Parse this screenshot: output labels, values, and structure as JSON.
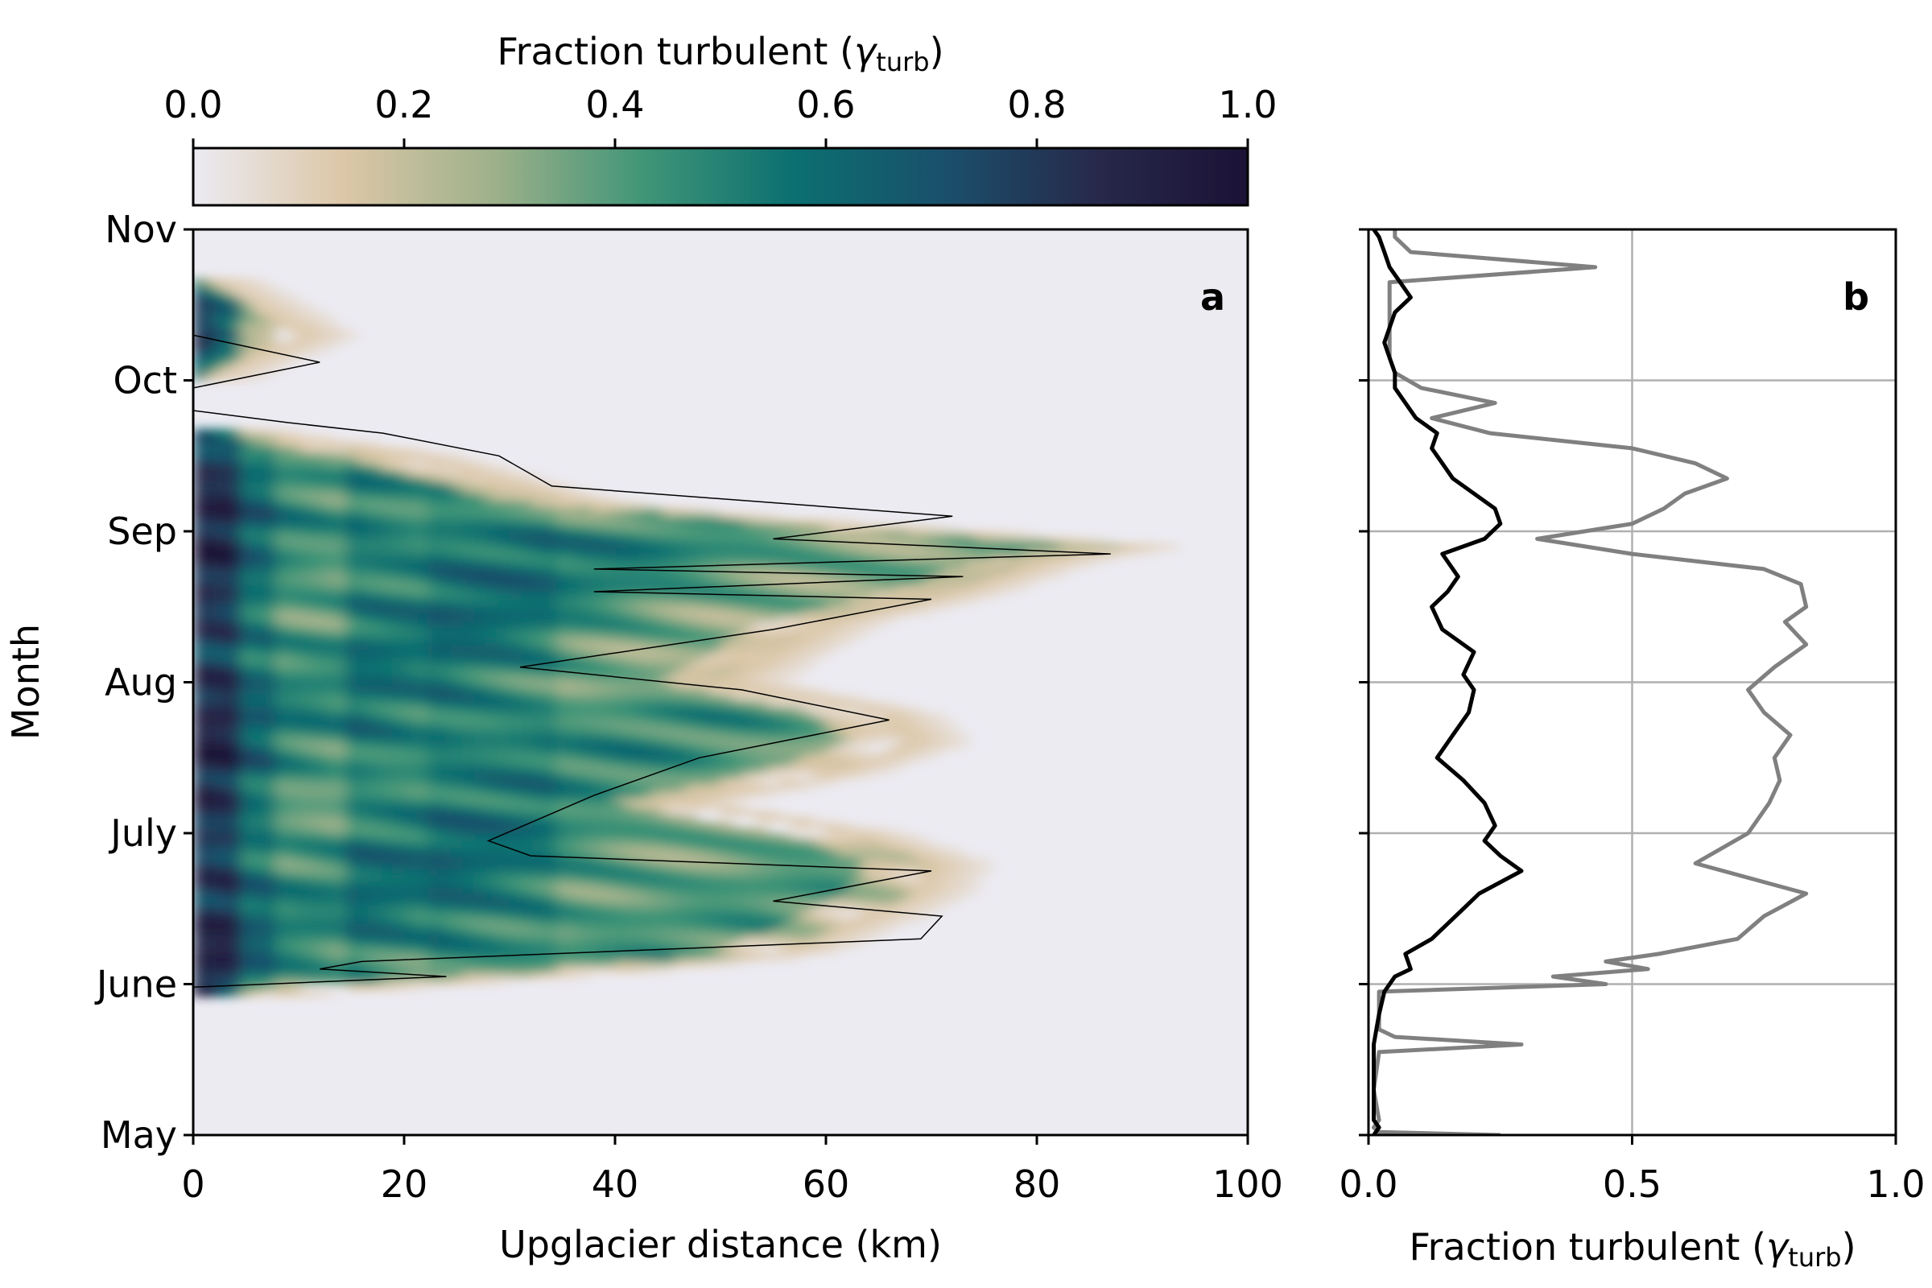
{
  "colorbar": {
    "label_main": "Fraction turbulent (",
    "label_symbol": "γ",
    "label_sub": "turb",
    "label_close": ")",
    "ticks": [
      "0.0",
      "0.2",
      "0.4",
      "0.6",
      "0.8",
      "1.0"
    ],
    "stops": [
      "#ecebf2",
      "#dcc7a7",
      "#9db08a",
      "#3f9577",
      "#0b6f70",
      "#1a4f6b",
      "#27294a",
      "#1b1236"
    ]
  },
  "chart_data": [
    {
      "panel": "a",
      "type": "heatmap",
      "xlabel": "Upglacier distance (km)",
      "ylabel": "Month",
      "xlim": [
        0,
        100
      ],
      "x_ticks": [
        "0",
        "20",
        "40",
        "60",
        "80",
        "100"
      ],
      "y_ticks": [
        "May",
        "June",
        "July",
        "Aug",
        "Sep",
        "Oct",
        "Nov"
      ],
      "clim": [
        0,
        1
      ],
      "zone_profile_months": [
        0.0,
        0.45,
        0.9,
        1.0,
        1.1,
        1.2,
        1.4,
        1.6,
        1.8,
        2.0,
        2.2,
        2.4,
        2.6,
        2.8,
        3.0,
        3.2,
        3.4,
        3.6,
        3.8,
        3.9,
        4.0,
        4.1,
        4.2,
        4.5,
        4.7,
        4.9,
        5.0,
        5.3,
        5.7,
        6.0
      ],
      "zone_profile_extent_km": [
        0,
        0,
        0,
        20,
        40,
        55,
        62,
        68,
        70,
        62,
        45,
        60,
        68,
        65,
        50,
        55,
        60,
        72,
        80,
        88,
        70,
        50,
        35,
        20,
        0,
        0,
        0,
        10,
        0,
        0
      ],
      "turbulent_boundary_months": [
        0.0,
        0.98,
        1.05,
        1.1,
        1.15,
        1.3,
        1.45,
        1.55,
        1.75,
        1.85,
        1.95,
        2.25,
        2.5,
        2.75,
        2.95,
        3.1,
        3.35,
        3.55,
        3.6,
        3.7,
        3.75,
        3.85,
        3.95,
        4.1,
        4.3,
        4.5,
        4.65,
        4.72,
        4.8,
        4.95,
        5.12,
        5.3,
        5.4,
        6.0
      ],
      "turbulent_boundary_km": [
        0,
        0,
        24,
        12,
        16,
        69,
        71,
        55,
        70,
        32,
        28,
        38,
        48,
        66,
        52,
        31,
        55,
        70,
        38,
        73,
        38,
        87,
        55,
        72,
        34,
        29,
        18,
        9,
        0,
        0,
        12,
        0,
        0,
        0
      ]
    },
    {
      "panel": "b",
      "type": "line",
      "xlabel_main": "Fraction turbulent (",
      "xlabel_symbol": "γ",
      "xlabel_sub": "turb",
      "xlabel_close": ")",
      "xlim": [
        0,
        1
      ],
      "x_ticks": [
        "0.0",
        "0.5",
        "1.0"
      ],
      "grid": true,
      "series": [
        {
          "color": "#000000",
          "y_months": [
            0.0,
            0.05,
            0.1,
            0.4,
            0.6,
            0.8,
            0.95,
            1.05,
            1.1,
            1.2,
            1.3,
            1.4,
            1.5,
            1.6,
            1.75,
            1.85,
            1.95,
            2.05,
            2.2,
            2.35,
            2.5,
            2.65,
            2.8,
            2.95,
            3.05,
            3.2,
            3.35,
            3.5,
            3.6,
            3.7,
            3.85,
            3.95,
            4.05,
            4.15,
            4.25,
            4.35,
            4.45,
            4.55,
            4.65,
            4.75,
            4.85,
            4.95,
            5.05,
            5.15,
            5.25,
            5.35,
            5.45,
            5.55,
            5.65,
            5.75,
            5.85,
            5.95,
            6.0
          ],
          "x": [
            0.01,
            0.02,
            0.01,
            0.01,
            0.01,
            0.02,
            0.03,
            0.05,
            0.08,
            0.07,
            0.12,
            0.15,
            0.18,
            0.21,
            0.29,
            0.25,
            0.22,
            0.24,
            0.22,
            0.18,
            0.13,
            0.16,
            0.19,
            0.2,
            0.18,
            0.2,
            0.14,
            0.12,
            0.15,
            0.17,
            0.14,
            0.22,
            0.25,
            0.24,
            0.2,
            0.16,
            0.14,
            0.12,
            0.13,
            0.09,
            0.07,
            0.05,
            0.05,
            0.04,
            0.03,
            0.04,
            0.05,
            0.08,
            0.06,
            0.04,
            0.03,
            0.02,
            0.01
          ]
        },
        {
          "color": "#808080",
          "y_months": [
            0.0,
            0.02,
            0.05,
            0.1,
            0.3,
            0.55,
            0.6,
            0.65,
            0.7,
            0.95,
            1.0,
            1.05,
            1.1,
            1.15,
            1.2,
            1.3,
            1.45,
            1.6,
            1.8,
            2.0,
            2.2,
            2.35,
            2.5,
            2.65,
            2.8,
            2.95,
            3.1,
            3.25,
            3.4,
            3.5,
            3.65,
            3.75,
            3.85,
            3.95,
            4.05,
            4.15,
            4.25,
            4.35,
            4.45,
            4.55,
            4.65,
            4.75,
            4.85,
            4.95,
            5.05,
            5.15,
            5.25,
            5.35,
            5.5,
            5.65,
            5.75,
            5.85,
            5.95,
            6.0
          ],
          "x": [
            0.25,
            0.02,
            0.01,
            0.02,
            0.01,
            0.02,
            0.29,
            0.05,
            0.02,
            0.02,
            0.45,
            0.35,
            0.53,
            0.45,
            0.55,
            0.7,
            0.75,
            0.83,
            0.62,
            0.72,
            0.76,
            0.78,
            0.77,
            0.8,
            0.75,
            0.72,
            0.77,
            0.83,
            0.79,
            0.83,
            0.82,
            0.75,
            0.5,
            0.32,
            0.5,
            0.56,
            0.6,
            0.68,
            0.62,
            0.5,
            0.23,
            0.12,
            0.24,
            0.1,
            0.05,
            0.04,
            0.04,
            0.04,
            0.04,
            0.04,
            0.43,
            0.08,
            0.05,
            0.05
          ]
        }
      ]
    }
  ],
  "labels": {
    "panel_a": "a",
    "panel_b": "b"
  }
}
